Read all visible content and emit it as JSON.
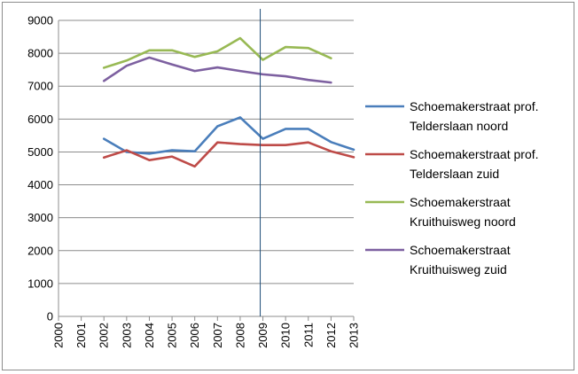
{
  "chart_data": {
    "type": "line",
    "title": "",
    "xlabel": "",
    "ylabel": "",
    "x": [
      "2000",
      "2001",
      "2002",
      "2003",
      "2004",
      "2005",
      "2006",
      "2007",
      "2008",
      "2009",
      "2010",
      "2011",
      "2012",
      "2013"
    ],
    "ylim": [
      0,
      9000
    ],
    "yticks": [
      "0",
      "1000",
      "2000",
      "3000",
      "4000",
      "5000",
      "6000",
      "7000",
      "8000",
      "9000"
    ],
    "grid": "horizontal",
    "legend_position": "right",
    "marker_line": {
      "x": "2009",
      "color": "#1f4e79"
    },
    "series": [
      {
        "name": "Schoemakerstraat prof. Telderslaan noord",
        "legend_lines": [
          "Schoemakerstraat prof.",
          "Telderslaan noord"
        ],
        "color": "#4a7ebb",
        "values": [
          null,
          null,
          5400,
          5000,
          4950,
          5050,
          5020,
          5780,
          6050,
          5400,
          5700,
          5700,
          5300,
          5070
        ]
      },
      {
        "name": "Schoemakerstraat prof. Telderslaan zuid",
        "legend_lines": [
          "Schoemakerstraat prof.",
          "Telderslaan zuid"
        ],
        "color": "#be4b48",
        "values": [
          null,
          null,
          4830,
          5050,
          4750,
          4860,
          4560,
          5290,
          5240,
          5210,
          5210,
          5290,
          5020,
          4840
        ]
      },
      {
        "name": "Schoemakerstraat Kruithuisweg noord",
        "legend_lines": [
          "Schoemakerstraat",
          "Kruithuisweg noord"
        ],
        "color": "#98b954",
        "values": [
          null,
          null,
          7560,
          7780,
          8090,
          8090,
          7890,
          8060,
          8460,
          7800,
          8190,
          8160,
          7850,
          null
        ]
      },
      {
        "name": "Schoemakerstraat Kruithuisweg zuid",
        "legend_lines": [
          "Schoemakerstraat",
          "Kruithuisweg zuid"
        ],
        "color": "#7d60a0",
        "values": [
          null,
          null,
          7160,
          7620,
          7870,
          7660,
          7460,
          7570,
          7460,
          7360,
          7300,
          7190,
          7110,
          null
        ]
      }
    ]
  }
}
